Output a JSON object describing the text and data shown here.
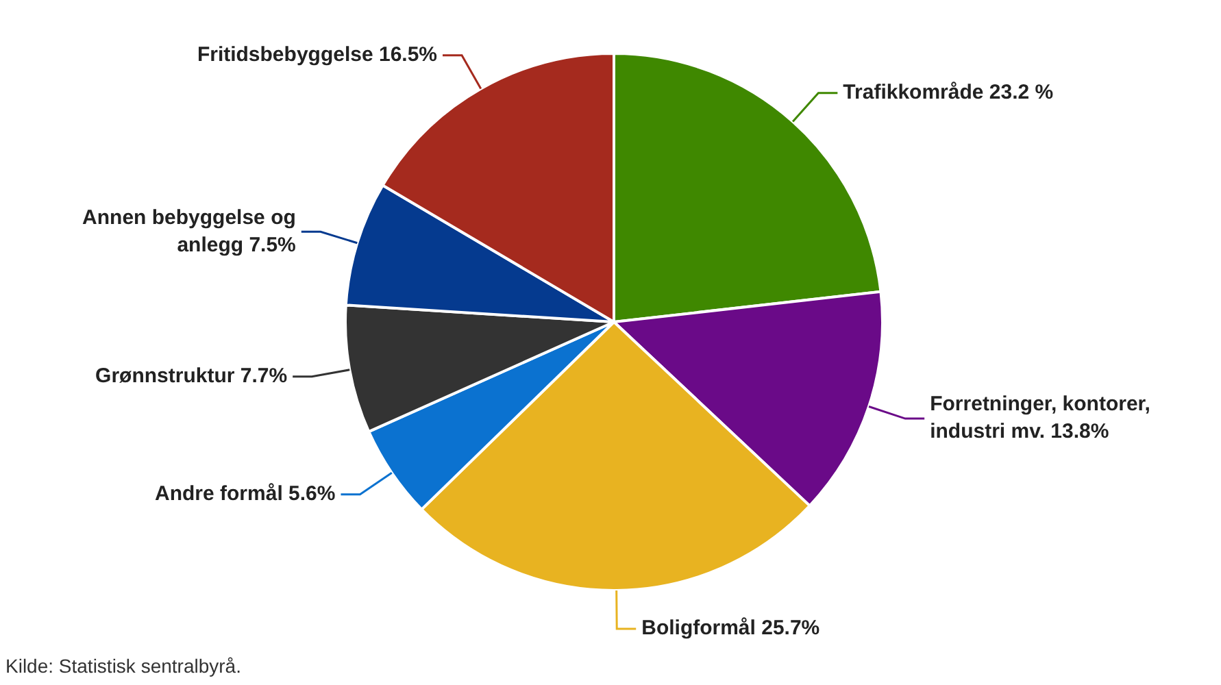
{
  "chart_data": {
    "type": "pie",
    "categories": [
      "Trafikkområde",
      "Forretninger, kontorer, industri mv.",
      "Boligformål",
      "Andre formål",
      "Grønnstruktur",
      "Annen bebyggelse og anlegg",
      "Fritidsbebyggelse"
    ],
    "values": [
      23.2,
      13.8,
      25.7,
      5.6,
      7.7,
      7.5,
      16.5
    ],
    "value_labels": [
      "23.2 %",
      "13.8%",
      "25.7%",
      "5.6%",
      "7.7%",
      "7.5%",
      "16.5%"
    ],
    "colors": [
      "#3f8800",
      "#6a0a88",
      "#e8b321",
      "#0b72d0",
      "#333333",
      "#053a8f",
      "#a52a1e"
    ],
    "annotations": [
      "Kilde: Statistisk sentralbyrå."
    ]
  }
}
